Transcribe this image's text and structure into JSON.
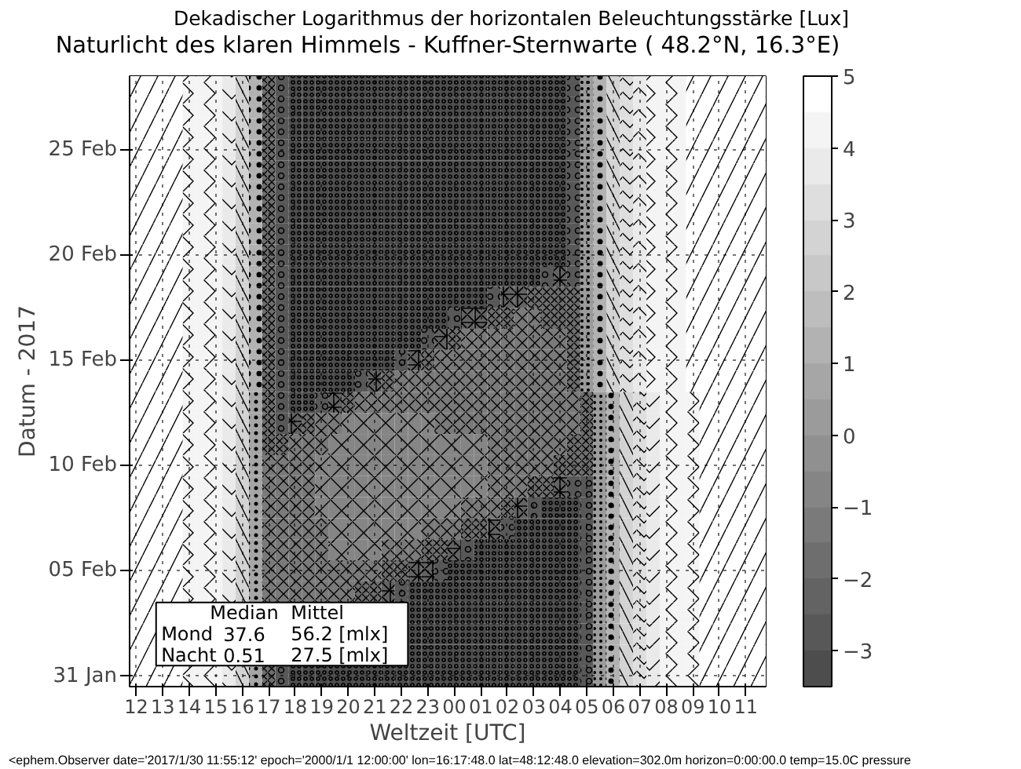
{
  "chart_data": {
    "type": "heatmap",
    "subtitle": "Dekadischer Logarithmus der horizontalen Beleuchtungsstärke [Lux]",
    "title": "Naturlicht des klaren Himmels - Kuffner-Sternwarte ( 48.2°N, 16.3°E)",
    "xlabel": "Weltzeit [UTC]",
    "ylabel": "Datum - 2017",
    "categories": [
      "12",
      null,
      "13",
      null,
      "14",
      null,
      "15",
      null,
      "16",
      null,
      "17",
      null,
      "18",
      null,
      "19",
      null,
      "20",
      null,
      "21",
      null,
      "22",
      null,
      "23",
      null,
      "00",
      null,
      "01",
      null,
      "02",
      null,
      "03",
      null,
      "04",
      null,
      "05",
      null,
      "06",
      null,
      "07",
      null,
      "08",
      null,
      "09",
      null,
      "10",
      null,
      "11",
      null
    ],
    "y_categories": [
      null,
      null,
      null,
      "25 Feb",
      null,
      null,
      null,
      null,
      "20 Feb",
      null,
      null,
      null,
      null,
      "15 Feb",
      null,
      null,
      null,
      null,
      "10 Feb",
      null,
      null,
      null,
      null,
      "05 Feb",
      null,
      null,
      null,
      null,
      "31 Jan"
    ],
    "cells": [
      [
        4.75,
        4.75,
        4.75,
        4.75,
        4.25,
        4.25,
        4.25,
        3.75,
        2.75,
        1.25,
        -1.75,
        -2.75,
        -3.25,
        -3.25,
        -3.25,
        -3.25,
        -3.25,
        -3.25,
        -3.25,
        -3.25,
        -3.25,
        -3.25,
        -3.25,
        -3.25,
        -3.25,
        -3.25,
        -3.25,
        -3.25,
        -3.25,
        -3.25,
        -3.25,
        -3.25,
        -3.25,
        -2.75,
        0.25,
        1.25,
        2.75,
        3.25,
        3.75,
        4.25,
        4.25,
        4.25,
        4.75,
        4.75,
        4.75,
        4.75,
        4.75,
        4.75
      ],
      [
        4.75,
        4.75,
        4.75,
        4.75,
        4.25,
        4.25,
        4.25,
        3.75,
        2.75,
        1.25,
        -1.75,
        -2.75,
        -3.25,
        -3.25,
        -3.25,
        -3.25,
        -3.25,
        -3.25,
        -3.25,
        -3.25,
        -3.25,
        -3.25,
        -3.25,
        -3.25,
        -3.25,
        -3.25,
        -3.25,
        -3.25,
        -3.25,
        -3.25,
        -3.25,
        -3.25,
        -3.25,
        -2.75,
        0.25,
        1.25,
        2.75,
        3.25,
        3.75,
        4.25,
        4.25,
        4.25,
        4.75,
        4.75,
        4.75,
        4.75,
        4.75,
        4.75
      ],
      [
        4.75,
        4.75,
        4.75,
        4.75,
        4.25,
        4.25,
        4.25,
        3.75,
        2.75,
        1.25,
        -1.75,
        -2.75,
        -3.25,
        -3.25,
        -3.25,
        -3.25,
        -3.25,
        -3.25,
        -3.25,
        -3.25,
        -3.25,
        -3.25,
        -3.25,
        -3.25,
        -3.25,
        -3.25,
        -3.25,
        -3.25,
        -3.25,
        -3.25,
        -3.25,
        -3.25,
        -3.25,
        -2.75,
        0.25,
        1.25,
        2.75,
        3.25,
        3.75,
        4.25,
        4.25,
        4.25,
        4.75,
        4.75,
        4.75,
        4.75,
        4.75,
        4.75
      ],
      [
        4.75,
        4.75,
        4.75,
        4.75,
        4.25,
        4.25,
        4.25,
        3.75,
        2.75,
        1.25,
        -1.75,
        -2.75,
        -3.25,
        -3.25,
        -3.25,
        -3.25,
        -3.25,
        -3.25,
        -3.25,
        -3.25,
        -3.25,
        -3.25,
        -3.25,
        -3.25,
        -3.25,
        -3.25,
        -3.25,
        -3.25,
        -3.25,
        -3.25,
        -3.25,
        -3.25,
        -3.25,
        -2.75,
        0.25,
        1.25,
        2.75,
        3.25,
        3.75,
        4.25,
        4.25,
        4.25,
        4.75,
        4.75,
        4.75,
        4.75,
        4.75,
        4.75
      ],
      [
        4.75,
        4.75,
        4.75,
        4.75,
        4.25,
        4.25,
        4.25,
        3.75,
        2.75,
        1.25,
        -1.75,
        -2.75,
        -3.25,
        -3.25,
        -3.25,
        -3.25,
        -3.25,
        -3.25,
        -3.25,
        -3.25,
        -3.25,
        -3.25,
        -3.25,
        -3.25,
        -3.25,
        -3.25,
        -3.25,
        -3.25,
        -3.25,
        -3.25,
        -3.25,
        -3.25,
        -3.25,
        -2.75,
        0.25,
        1.25,
        2.75,
        3.25,
        3.75,
        4.25,
        4.25,
        4.25,
        4.75,
        4.75,
        4.75,
        4.75,
        4.75,
        4.75
      ],
      [
        4.75,
        4.75,
        4.75,
        4.75,
        4.25,
        4.25,
        4.25,
        3.75,
        2.75,
        1.25,
        -1.75,
        -2.75,
        -3.25,
        -3.25,
        -3.25,
        -3.25,
        -3.25,
        -3.25,
        -3.25,
        -3.25,
        -3.25,
        -3.25,
        -3.25,
        -3.25,
        -3.25,
        -3.25,
        -3.25,
        -3.25,
        -3.25,
        -3.25,
        -3.25,
        -3.25,
        -3.25,
        -2.75,
        0.25,
        1.25,
        2.75,
        3.25,
        3.75,
        4.25,
        4.25,
        4.25,
        4.75,
        4.75,
        4.75,
        4.75,
        4.75,
        4.75
      ],
      [
        4.75,
        4.75,
        4.75,
        4.75,
        4.25,
        4.25,
        4.25,
        3.75,
        2.75,
        1.25,
        -1.75,
        -2.75,
        -3.25,
        -3.25,
        -3.25,
        -3.25,
        -3.25,
        -3.25,
        -3.25,
        -3.25,
        -3.25,
        -3.25,
        -3.25,
        -3.25,
        -3.25,
        -3.25,
        -3.25,
        -3.25,
        -3.25,
        -3.25,
        -3.25,
        -3.25,
        -3.25,
        -2.75,
        0.25,
        1.25,
        2.75,
        3.25,
        3.75,
        4.25,
        4.25,
        4.25,
        4.75,
        4.75,
        4.75,
        4.75,
        4.75,
        4.75
      ],
      [
        4.75,
        4.75,
        4.75,
        4.75,
        4.25,
        4.25,
        4.25,
        3.75,
        2.75,
        1.25,
        -1.75,
        -2.75,
        -3.25,
        -3.25,
        -3.25,
        -3.25,
        -3.25,
        -3.25,
        -3.25,
        -3.25,
        -3.25,
        -3.25,
        -3.25,
        -3.25,
        -3.25,
        -3.25,
        -3.25,
        -3.25,
        -3.25,
        -3.25,
        -3.25,
        -3.25,
        -3.25,
        -2.75,
        0.25,
        1.25,
        2.75,
        3.25,
        3.75,
        4.25,
        4.25,
        4.25,
        4.75,
        4.75,
        4.75,
        4.75,
        4.75,
        4.75
      ],
      [
        4.75,
        4.75,
        4.75,
        4.75,
        4.25,
        4.25,
        4.25,
        3.75,
        2.75,
        1.25,
        -1.75,
        -2.75,
        -3.25,
        -3.25,
        -3.25,
        -3.25,
        -3.25,
        -3.25,
        -3.25,
        -3.25,
        -3.25,
        -3.25,
        -3.25,
        -3.25,
        -3.25,
        -3.25,
        -3.25,
        -3.25,
        -3.25,
        -3.25,
        -3.25,
        -3.25,
        -3.25,
        -2.75,
        0.25,
        1.25,
        2.75,
        3.25,
        3.75,
        4.25,
        4.25,
        4.25,
        4.75,
        4.75,
        4.75,
        4.75,
        4.75,
        4.75
      ],
      [
        4.75,
        4.75,
        4.75,
        4.75,
        4.25,
        4.25,
        4.25,
        3.75,
        2.75,
        1.25,
        -1.75,
        -2.75,
        -3.25,
        -3.25,
        -3.25,
        -3.25,
        -3.25,
        -3.25,
        -3.25,
        -3.25,
        -3.25,
        -3.25,
        -3.25,
        -3.25,
        -3.25,
        -3.25,
        -3.25,
        -3.25,
        -3.25,
        -3.25,
        -3.25,
        -2.75,
        -2.25,
        -2.75,
        0.25,
        1.25,
        2.75,
        3.25,
        3.75,
        4.25,
        4.25,
        4.25,
        4.75,
        4.75,
        4.75,
        4.75,
        4.75,
        4.75
      ],
      [
        4.75,
        4.75,
        4.75,
        4.75,
        4.25,
        4.25,
        4.25,
        3.75,
        2.75,
        1.25,
        -1.75,
        -2.75,
        -3.25,
        -3.25,
        -3.25,
        -3.25,
        -3.25,
        -3.25,
        -3.25,
        -3.25,
        -3.25,
        -3.25,
        -3.25,
        -3.25,
        -3.25,
        -3.25,
        -3.25,
        -2.75,
        -2.25,
        -2.25,
        -1.75,
        -1.75,
        -1.75,
        -1.75,
        0.25,
        1.25,
        2.75,
        3.25,
        3.75,
        4.25,
        4.25,
        4.25,
        4.75,
        4.75,
        4.75,
        4.75,
        4.75,
        4.75
      ],
      [
        4.75,
        4.75,
        4.75,
        4.75,
        4.25,
        4.25,
        4.25,
        3.75,
        2.75,
        1.25,
        -1.75,
        -2.75,
        -3.25,
        -3.25,
        -3.25,
        -3.25,
        -3.25,
        -3.25,
        -3.25,
        -3.25,
        -3.25,
        -3.25,
        -3.25,
        -3.25,
        -2.75,
        -2.25,
        -2.25,
        -1.75,
        -1.75,
        -1.25,
        -1.25,
        -1.75,
        -1.75,
        -1.75,
        0.25,
        1.25,
        2.75,
        3.25,
        3.75,
        4.25,
        4.25,
        4.25,
        4.75,
        4.75,
        4.75,
        4.75,
        4.75,
        4.75
      ],
      [
        4.75,
        4.75,
        4.75,
        4.75,
        4.25,
        4.25,
        4.25,
        3.75,
        2.75,
        1.25,
        -1.75,
        -2.75,
        -3.25,
        -3.25,
        -3.25,
        -3.25,
        -3.25,
        -3.25,
        -3.25,
        -3.25,
        -3.25,
        -3.25,
        -2.75,
        -2.25,
        -1.75,
        -1.25,
        -1.25,
        -1.25,
        -1.25,
        -1.25,
        -1.25,
        -1.25,
        -1.25,
        -1.75,
        0.25,
        1.25,
        2.75,
        3.25,
        3.75,
        4.25,
        4.25,
        4.25,
        4.75,
        4.75,
        4.75,
        4.75,
        4.75,
        4.75
      ],
      [
        4.75,
        4.75,
        4.75,
        4.75,
        4.25,
        4.25,
        4.25,
        3.75,
        2.75,
        1.25,
        -1.75,
        -2.75,
        -3.25,
        -3.25,
        -3.25,
        -3.25,
        -3.25,
        -3.25,
        -3.25,
        -3.25,
        -2.75,
        -2.25,
        -1.75,
        -1.25,
        -1.25,
        -1.25,
        -1.25,
        -1.25,
        -1.25,
        -1.25,
        -1.25,
        -1.25,
        -1.25,
        -1.75,
        0.25,
        1.25,
        2.75,
        3.25,
        3.75,
        4.25,
        4.25,
        4.25,
        4.75,
        4.75,
        4.75,
        4.75,
        4.75,
        4.75
      ],
      [
        4.75,
        4.75,
        4.75,
        4.75,
        4.25,
        4.25,
        4.25,
        3.75,
        2.75,
        1.25,
        -1.75,
        -2.75,
        -3.25,
        -3.25,
        -3.25,
        -3.25,
        -3.25,
        -2.75,
        -2.25,
        -1.75,
        -1.25,
        -1.25,
        -1.25,
        -1.25,
        -1.25,
        -1.25,
        -1.25,
        -1.25,
        -1.25,
        -1.25,
        -1.25,
        -1.25,
        -1.25,
        -1.75,
        0.25,
        1.25,
        2.75,
        3.25,
        3.75,
        4.25,
        4.25,
        4.25,
        4.75,
        4.75,
        4.75,
        4.75,
        4.75,
        4.75
      ],
      [
        4.75,
        4.75,
        4.75,
        4.75,
        4.25,
        4.25,
        4.25,
        3.75,
        2.75,
        0.75,
        -1.75,
        -2.75,
        -3.25,
        -3.25,
        -2.75,
        -2.25,
        -1.75,
        -1.25,
        -1.25,
        -1.25,
        -1.25,
        -1.25,
        -1.25,
        -1.25,
        -1.25,
        -1.25,
        -1.25,
        -1.25,
        -1.25,
        -1.25,
        -1.25,
        -1.25,
        -1.25,
        -1.25,
        -1.75,
        0.25,
        1.25,
        2.75,
        3.25,
        3.75,
        4.25,
        4.25,
        4.25,
        4.75,
        4.75,
        4.75,
        4.75,
        4.75
      ],
      [
        4.75,
        4.75,
        4.75,
        4.75,
        4.25,
        4.25,
        4.25,
        3.75,
        2.75,
        0.75,
        -1.75,
        -2.75,
        -2.25,
        -1.75,
        -1.25,
        -1.25,
        -0.75,
        -0.75,
        -0.75,
        -0.75,
        -0.75,
        -0.75,
        -0.75,
        -1.25,
        -1.25,
        -1.25,
        -1.25,
        -1.25,
        -1.25,
        -1.25,
        -1.25,
        -1.25,
        -1.25,
        -1.25,
        -1.75,
        0.25,
        1.25,
        2.75,
        3.25,
        3.75,
        4.25,
        4.25,
        4.25,
        4.75,
        4.75,
        4.75,
        4.75,
        4.75
      ],
      [
        4.75,
        4.75,
        4.75,
        4.75,
        4.25,
        4.25,
        4.25,
        3.75,
        2.75,
        0.75,
        -1.75,
        -1.75,
        -1.25,
        -1.25,
        -1.25,
        -0.75,
        -0.75,
        -0.75,
        -0.75,
        -0.75,
        -0.75,
        -0.75,
        -0.75,
        -0.75,
        -0.75,
        -0.75,
        -0.75,
        -1.25,
        -1.25,
        -1.25,
        -1.25,
        -1.25,
        -1.25,
        -1.75,
        -1.75,
        0.25,
        1.25,
        2.75,
        3.25,
        3.75,
        4.25,
        4.25,
        4.25,
        4.75,
        4.75,
        4.75,
        4.75,
        4.75
      ],
      [
        4.75,
        4.75,
        4.75,
        4.75,
        4.25,
        4.25,
        4.25,
        3.75,
        2.75,
        0.75,
        -1.25,
        -1.25,
        -1.25,
        -1.25,
        -0.75,
        -0.75,
        -0.75,
        -0.75,
        -0.75,
        -0.75,
        -0.75,
        -0.75,
        -0.75,
        -0.75,
        -0.75,
        -0.75,
        -0.75,
        -1.25,
        -1.25,
        -1.25,
        -1.25,
        -1.25,
        -1.75,
        -1.75,
        -1.75,
        0.25,
        1.25,
        2.75,
        3.25,
        3.75,
        4.25,
        4.25,
        4.25,
        4.75,
        4.75,
        4.75,
        4.75,
        4.75
      ],
      [
        4.75,
        4.75,
        4.75,
        4.75,
        4.25,
        4.25,
        4.25,
        3.75,
        2.75,
        0.75,
        -1.25,
        -1.25,
        -1.25,
        -1.25,
        -0.75,
        -0.75,
        -0.75,
        -0.75,
        -0.75,
        -0.75,
        -0.75,
        -0.75,
        -0.75,
        -0.75,
        -0.75,
        -0.75,
        -0.75,
        -1.25,
        -1.25,
        -1.25,
        -1.75,
        -1.75,
        -2.25,
        -2.75,
        -2.75,
        0.25,
        1.25,
        2.75,
        3.25,
        3.75,
        4.25,
        4.25,
        4.25,
        4.75,
        4.75,
        4.75,
        4.75,
        4.75
      ],
      [
        4.75,
        4.75,
        4.75,
        4.75,
        4.25,
        4.25,
        4.25,
        3.75,
        2.75,
        0.75,
        -1.25,
        -1.25,
        -1.25,
        -1.25,
        -0.75,
        -0.75,
        -0.75,
        -0.75,
        -0.75,
        -0.75,
        -0.75,
        -0.75,
        -0.75,
        -0.75,
        -0.75,
        -1.25,
        -1.25,
        -1.25,
        -1.75,
        -2.25,
        -2.75,
        -3.25,
        -3.25,
        -3.25,
        -2.75,
        0.25,
        1.25,
        2.75,
        3.25,
        3.75,
        4.25,
        4.25,
        4.25,
        4.75,
        4.75,
        4.75,
        4.75,
        4.75
      ],
      [
        4.75,
        4.75,
        4.75,
        4.75,
        4.25,
        4.25,
        4.25,
        3.75,
        2.75,
        0.75,
        -1.25,
        -1.25,
        -1.25,
        -1.25,
        -1.25,
        -0.75,
        -0.75,
        -0.75,
        -0.75,
        -0.75,
        -0.75,
        -0.75,
        -1.25,
        -1.25,
        -1.25,
        -1.75,
        -1.75,
        -2.25,
        -2.75,
        -3.25,
        -3.25,
        -3.25,
        -3.25,
        -3.25,
        -2.75,
        0.25,
        1.25,
        2.75,
        3.25,
        3.75,
        4.25,
        4.25,
        4.25,
        4.75,
        4.75,
        4.75,
        4.75,
        4.75
      ],
      [
        4.75,
        4.75,
        4.75,
        4.75,
        4.25,
        4.25,
        4.25,
        3.75,
        2.75,
        0.75,
        -1.25,
        -1.25,
        -1.25,
        -1.25,
        -1.25,
        -0.75,
        -0.75,
        -0.75,
        -0.75,
        -1.25,
        -1.25,
        -1.25,
        -1.75,
        -1.75,
        -2.25,
        -2.75,
        -3.25,
        -3.25,
        -3.25,
        -3.25,
        -3.25,
        -3.25,
        -3.25,
        -3.25,
        -2.75,
        0.25,
        1.25,
        2.75,
        3.25,
        3.75,
        4.25,
        4.25,
        4.25,
        4.75,
        4.75,
        4.75,
        4.75,
        4.75
      ],
      [
        4.75,
        4.75,
        4.75,
        4.75,
        4.25,
        4.25,
        4.25,
        3.75,
        2.75,
        0.75,
        -1.25,
        -1.25,
        -1.25,
        -1.25,
        -1.25,
        -1.25,
        -1.25,
        -1.25,
        -1.25,
        -1.75,
        -1.75,
        -2.25,
        -2.25,
        -2.75,
        -3.25,
        -3.25,
        -3.25,
        -3.25,
        -3.25,
        -3.25,
        -3.25,
        -3.25,
        -3.25,
        -3.25,
        -2.75,
        0.25,
        1.25,
        2.75,
        3.25,
        3.75,
        4.25,
        4.25,
        4.25,
        4.75,
        4.75,
        4.75,
        4.75,
        4.75
      ],
      [
        4.75,
        4.75,
        4.75,
        4.75,
        4.25,
        4.25,
        4.25,
        3.75,
        2.75,
        0.75,
        -1.25,
        -1.25,
        -1.25,
        -1.25,
        -1.25,
        -1.25,
        -1.25,
        -1.75,
        -1.75,
        -2.25,
        -2.75,
        -3.25,
        -3.25,
        -3.25,
        -3.25,
        -3.25,
        -3.25,
        -3.25,
        -3.25,
        -3.25,
        -3.25,
        -3.25,
        -3.25,
        -3.25,
        -2.75,
        0.25,
        1.25,
        2.75,
        3.25,
        3.75,
        4.25,
        4.25,
        4.25,
        4.75,
        4.75,
        4.75,
        4.75,
        4.75
      ],
      [
        4.75,
        4.75,
        null,
        null,
        null,
        null,
        null,
        null,
        null,
        null,
        null,
        null,
        null,
        null,
        null,
        null,
        null,
        null,
        null,
        null,
        null,
        -3.25,
        -3.25,
        -3.25,
        -3.25,
        -3.25,
        -3.25,
        -3.25,
        -3.25,
        -3.25,
        -3.25,
        -3.25,
        -3.25,
        -3.25,
        -2.75,
        0.25,
        1.25,
        2.75,
        3.25,
        3.75,
        4.25,
        4.25,
        4.25,
        4.75,
        4.75,
        4.75,
        4.75,
        4.75
      ],
      [
        4.75,
        4.75,
        null,
        null,
        null,
        null,
        null,
        null,
        null,
        null,
        null,
        null,
        null,
        null,
        null,
        null,
        null,
        null,
        null,
        null,
        null,
        -3.25,
        -3.25,
        -3.25,
        -3.25,
        -3.25,
        -3.25,
        -3.25,
        -3.25,
        -3.25,
        -3.25,
        -3.25,
        -3.25,
        -3.25,
        -2.75,
        0.25,
        1.25,
        2.75,
        3.25,
        3.75,
        4.25,
        4.25,
        4.25,
        4.75,
        4.75,
        4.75,
        4.75,
        4.75
      ],
      [
        4.75,
        4.75,
        null,
        null,
        null,
        null,
        null,
        null,
        null,
        null,
        null,
        null,
        null,
        null,
        null,
        null,
        null,
        null,
        null,
        null,
        null,
        -3.25,
        -3.25,
        -3.25,
        -3.25,
        -3.25,
        -3.25,
        -3.25,
        -3.25,
        -3.25,
        -3.25,
        -3.25,
        -3.25,
        -3.25,
        -2.75,
        0.25,
        1.25,
        2.75,
        3.25,
        3.75,
        4.25,
        4.25,
        4.25,
        4.75,
        4.75,
        4.75,
        4.75,
        4.75
      ],
      [
        4.75,
        4.75,
        4.75,
        4.75,
        4.25,
        4.25,
        4.25,
        3.75,
        2.75,
        0.75,
        -1.75,
        -2.75,
        -3.25,
        -3.25,
        -3.25,
        -3.25,
        -3.25,
        -3.25,
        -3.25,
        -3.25,
        -3.25,
        -3.25,
        -3.25,
        -3.25,
        -3.25,
        -3.25,
        -3.25,
        -3.25,
        -3.25,
        -3.25,
        -3.25,
        -3.25,
        -3.25,
        -3.25,
        -2.75,
        0.25,
        1.25,
        2.75,
        3.25,
        3.75,
        4.25,
        4.25,
        4.25,
        4.75,
        4.75,
        4.75,
        4.75,
        4.75
      ]
    ],
    "clim": [
      -3.5,
      5
    ],
    "cticks": [
      {
        "value": -3,
        "label": "−3"
      },
      {
        "value": -2,
        "label": "−2"
      },
      {
        "value": -1,
        "label": "−1"
      },
      0,
      1,
      2,
      3,
      4,
      5
    ],
    "grid": true,
    "annotations": [
      "Median",
      "Mittel",
      "Mond",
      "37.6",
      "56.2 [mlx]",
      "Nacht",
      "0.51",
      "27.5 [mlx]",
      "<ephem.Observer date='2017/1/30 11:55:12' epoch='2000/1/1 12:00:00' lon=16:17:48.0 lat=48:12:48.0 elevation=302.0m horizon=0:00:00.0 temp=15.0C pressure"
    ]
  }
}
